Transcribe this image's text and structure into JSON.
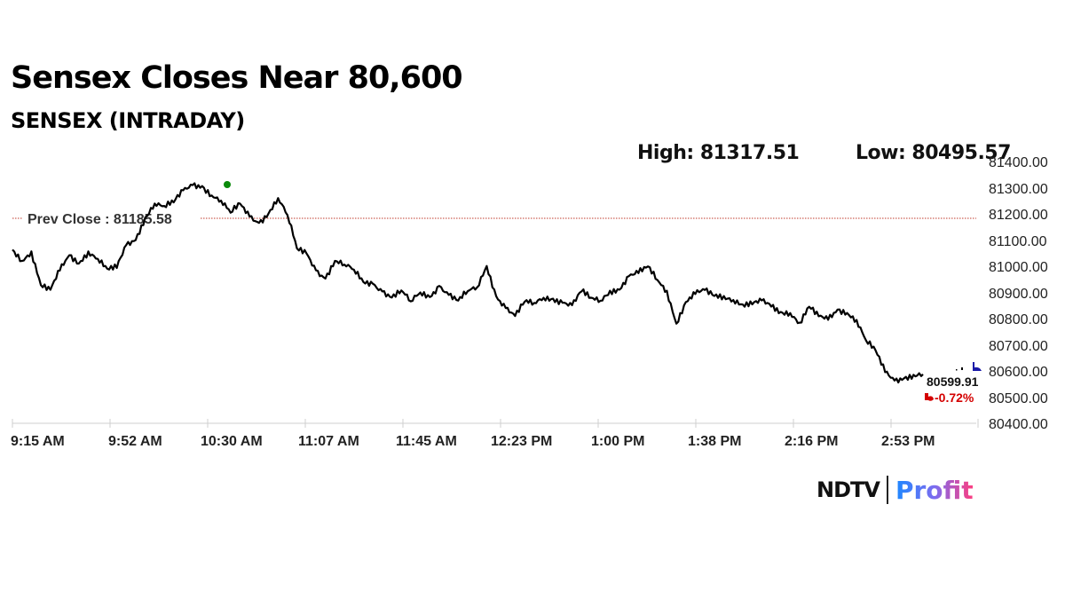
{
  "header": {
    "title": "Sensex Closes Near 80,600",
    "subtitle": "SENSEX (INTRADAY)",
    "high_label": "High: 81317.51",
    "low_label": "Low: 80495.57"
  },
  "annotations": {
    "prev_close_label": "Prev Close : 81185.58",
    "last_value": "80599.91",
    "change_pct": "-0.72%"
  },
  "branding": {
    "ndtv": "NDTV",
    "profit": "Profit"
  },
  "colors": {
    "line": "#000000",
    "prev_close": "#c0392b",
    "high_marker": "#0a8a0a",
    "last_marker": "#1a1aa8",
    "negative": "#d40000"
  },
  "chart_data": {
    "type": "line",
    "title": "SENSEX (INTRADAY)",
    "xlabel": "",
    "ylabel": "",
    "ylim": [
      80400,
      81400
    ],
    "yticks": [
      "81400.00",
      "81300.00",
      "81200.00",
      "81100.00",
      "81000.00",
      "80900.00",
      "80800.00",
      "80700.00",
      "80600.00",
      "80500.00",
      "80400.00"
    ],
    "xticks": [
      "9:15 AM",
      "9:52 AM",
      "10:30 AM",
      "11:07 AM",
      "11:45 AM",
      "12:23 PM",
      "1:00 PM",
      "1:38 PM",
      "2:16 PM",
      "2:53 PM"
    ],
    "prev_close": 81185.58,
    "high": 81317.51,
    "low": 80495.57,
    "last": 80599.91,
    "change_pct": -0.72,
    "grid": false,
    "series": [
      {
        "name": "SENSEX",
        "x": [
          "9:15",
          "9:18",
          "9:22",
          "9:25",
          "9:29",
          "9:33",
          "9:37",
          "9:40",
          "9:44",
          "9:48",
          "9:52",
          "9:56",
          "10:00",
          "10:03",
          "10:07",
          "10:11",
          "10:15",
          "10:18",
          "10:22",
          "10:26",
          "10:30",
          "10:34",
          "10:37",
          "10:41",
          "10:45",
          "10:49",
          "10:52",
          "10:56",
          "11:00",
          "11:04",
          "11:07",
          "11:11",
          "11:15",
          "11:19",
          "11:22",
          "11:26",
          "11:30",
          "11:34",
          "11:37",
          "11:41",
          "11:45",
          "11:49",
          "11:52",
          "11:56",
          "12:00",
          "12:04",
          "12:08",
          "12:11",
          "12:15",
          "12:19",
          "12:23",
          "12:27",
          "12:30",
          "12:34",
          "12:38",
          "12:42",
          "12:45",
          "12:49",
          "12:53",
          "12:57",
          "1:00",
          "1:04",
          "1:08",
          "1:12",
          "1:15",
          "1:19",
          "1:23",
          "1:27",
          "1:30",
          "1:34",
          "1:38",
          "1:42",
          "1:45",
          "1:49",
          "1:53",
          "1:57",
          "2:00",
          "2:04",
          "2:08",
          "2:12",
          "2:16",
          "2:20",
          "2:23",
          "2:27",
          "2:31",
          "2:35",
          "2:38",
          "2:42",
          "2:46",
          "2:50",
          "2:53",
          "2:57",
          "3:01",
          "3:05",
          "3:09",
          "3:13",
          "3:17",
          "3:21",
          "3:25",
          "3:29"
        ],
        "values": [
          81060,
          81020,
          81050,
          80930,
          80910,
          80990,
          81040,
          81010,
          81050,
          81030,
          80990,
          81000,
          81080,
          81100,
          81180,
          81240,
          81230,
          81250,
          81290,
          81310,
          81300,
          81270,
          81250,
          81210,
          81240,
          81190,
          81160,
          81200,
          81260,
          81200,
          81070,
          81050,
          80980,
          80950,
          81020,
          81010,
          80990,
          80940,
          80930,
          80900,
          80880,
          80910,
          80870,
          80900,
          80880,
          80920,
          80890,
          80870,
          80910,
          80920,
          81000,
          80880,
          80840,
          80810,
          80870,
          80860,
          80880,
          80870,
          80860,
          80850,
          80910,
          80880,
          80870,
          80900,
          80910,
          80960,
          80980,
          81000,
          80950,
          80900,
          80780,
          80860,
          80900,
          80910,
          80890,
          80880,
          80870,
          80850,
          80860,
          80870,
          80850,
          80820,
          80820,
          80780,
          80850,
          80810,
          80800,
          80830,
          80820,
          80790,
          80720,
          80680,
          80600,
          80560,
          80570,
          80580,
          80590,
          80600,
          80610,
          80600
        ]
      }
    ]
  }
}
